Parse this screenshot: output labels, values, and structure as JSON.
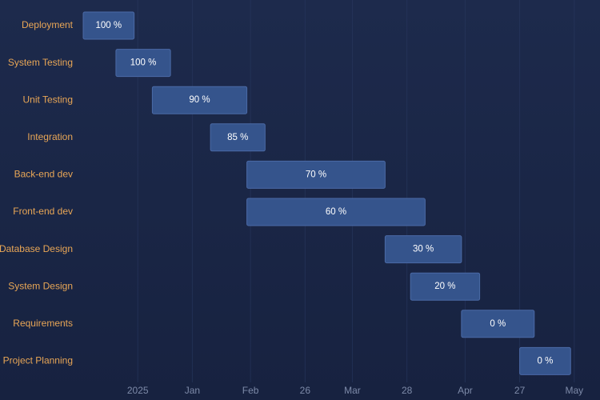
{
  "chart_data": {
    "type": "gantt",
    "title": "",
    "xlabel": "",
    "ylabel": "",
    "x_domain": [
      "2024-12-17",
      "2025-05-05"
    ],
    "x_ticks": [
      {
        "date": "2025-01-01",
        "label": "2025"
      },
      {
        "date": "2025-01-16",
        "label": "Jan"
      },
      {
        "date": "2025-02-01",
        "label": "Feb"
      },
      {
        "date": "2025-02-16",
        "label": "26"
      },
      {
        "date": "2025-03-01",
        "label": "Mar"
      },
      {
        "date": "2025-03-16",
        "label": "28"
      },
      {
        "date": "2025-04-01",
        "label": "Apr"
      },
      {
        "date": "2025-04-16",
        "label": "27"
      },
      {
        "date": "2025-05-01",
        "label": "May"
      }
    ],
    "tasks": [
      {
        "name": "Deployment",
        "start": "2024-12-17",
        "end": "2024-12-31",
        "progress": 100,
        "label": "100 %"
      },
      {
        "name": "System Testing",
        "start": "2024-12-26",
        "end": "2025-01-10",
        "progress": 100,
        "label": "100 %"
      },
      {
        "name": "Unit Testing",
        "start": "2025-01-05",
        "end": "2025-01-31",
        "progress": 90,
        "label": "90 %"
      },
      {
        "name": "Integration",
        "start": "2025-01-21",
        "end": "2025-02-05",
        "progress": 85,
        "label": "85 %"
      },
      {
        "name": "Back-end dev",
        "start": "2025-01-31",
        "end": "2025-03-10",
        "progress": 70,
        "label": "70 %"
      },
      {
        "name": "Front-end dev",
        "start": "2025-01-31",
        "end": "2025-03-21",
        "progress": 60,
        "label": "60 %"
      },
      {
        "name": "Database Design",
        "start": "2025-03-10",
        "end": "2025-03-31",
        "progress": 30,
        "label": "30 %"
      },
      {
        "name": "System Design",
        "start": "2025-03-17",
        "end": "2025-04-05",
        "progress": 20,
        "label": "20 %"
      },
      {
        "name": "Requirements",
        "start": "2025-03-31",
        "end": "2025-04-20",
        "progress": 0,
        "label": "0 %"
      },
      {
        "name": "Project Planning",
        "start": "2025-04-16",
        "end": "2025-04-30",
        "progress": 0,
        "label": "0 %"
      }
    ],
    "colors": {
      "bar_fill": "#35548c",
      "bar_stroke": "#4b6aa6",
      "task_label": "#e8a656",
      "tick_label": "#7d8aa8",
      "bar_text": "#ffffff"
    }
  }
}
